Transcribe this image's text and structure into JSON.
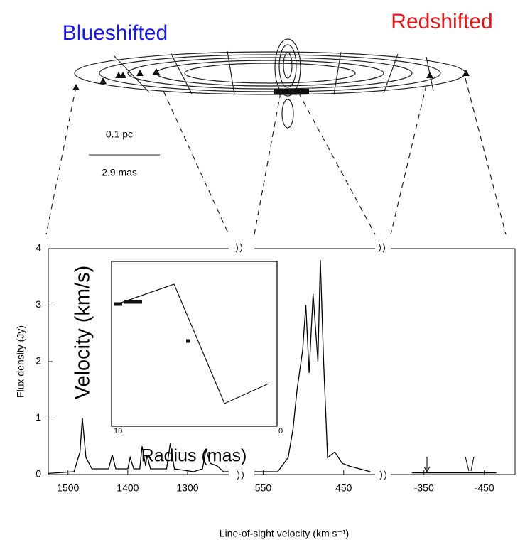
{
  "labels": {
    "blueshifted": "Blueshifted",
    "redshifted": "Redshifted",
    "scale_pc": "0.1 pc",
    "scale_mas": "2.9 mas",
    "inset_ylabel": "Velocity (km/s)",
    "inset_xlabel": "Radius (mas)",
    "inset_x_left": "10",
    "inset_x_right": "0"
  },
  "chart_data": [
    {
      "type": "line",
      "ylabel": "Flux density (Jy)",
      "ylim": [
        0,
        4
      ],
      "yticks": [
        0,
        1,
        2,
        3,
        4
      ],
      "xlim": [
        1533,
        1231
      ],
      "xticks": [
        1500,
        1400,
        1300
      ],
      "color": "#000000",
      "x": [
        1533,
        1490,
        1480,
        1476,
        1470,
        1460,
        1432,
        1426,
        1420,
        1400,
        1396,
        1390,
        1380,
        1376,
        1370,
        1368,
        1362,
        1335,
        1329,
        1322,
        1290,
        1275,
        1269,
        1262,
        1250,
        1240,
        1231
      ],
      "values": [
        0.02,
        0.05,
        0.4,
        1.0,
        0.3,
        0.1,
        0.1,
        0.35,
        0.1,
        0.1,
        0.3,
        0.1,
        0.1,
        0.5,
        0.15,
        0.35,
        0.1,
        0.1,
        0.55,
        0.1,
        0.05,
        0.1,
        0.45,
        0.2,
        0.15,
        0.05,
        0.05
      ]
    },
    {
      "type": "line",
      "xlabel": "Line-of-sight velocity (km s⁻¹)",
      "ylim": [
        0,
        4
      ],
      "xlim": [
        561,
        411
      ],
      "xticks": [
        550,
        450
      ],
      "color": "#000000",
      "x": [
        561,
        532,
        519,
        513,
        508,
        501,
        497,
        493,
        488,
        482,
        479,
        475,
        470,
        461,
        452,
        443,
        417
      ],
      "values": [
        0.05,
        0.05,
        0.3,
        0.8,
        1.5,
        2.2,
        3.0,
        1.8,
        3.2,
        2.0,
        3.8,
        2.0,
        0.3,
        0.4,
        0.2,
        0.15,
        0.05
      ]
    },
    {
      "type": "line",
      "ylim": [
        0,
        4
      ],
      "xlim": [
        -295,
        -501
      ],
      "xticks": [
        -350,
        -450
      ],
      "color": "#000000",
      "x": [
        -330,
        -400,
        -470
      ],
      "values": [
        0.03,
        0.03,
        0.03
      ]
    }
  ]
}
